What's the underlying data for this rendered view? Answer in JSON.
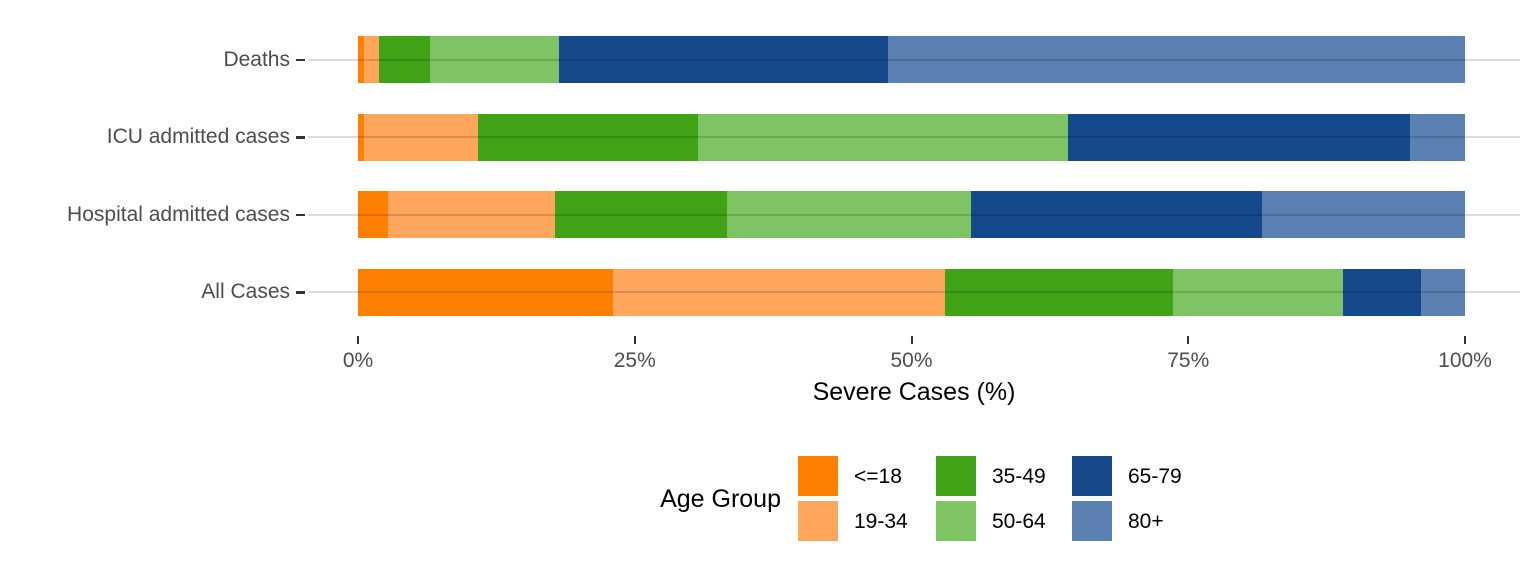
{
  "chart_data": {
    "type": "bar",
    "orientation": "horizontal",
    "stacked": true,
    "unit": "percent",
    "title": "",
    "xlabel": "Severe Cases (%)",
    "ylabel": "",
    "xlim": [
      0,
      100
    ],
    "x_ticks": [
      "0%",
      "25%",
      "50%",
      "75%",
      "100%"
    ],
    "x_tick_values": [
      0,
      25,
      50,
      75,
      100
    ],
    "grid": "horizontal lines per category",
    "categories": [
      "Deaths",
      "ICU admitted cases",
      "Hospital admitted cases",
      "All Cases"
    ],
    "legend": {
      "title": "Age Group",
      "position": "bottom",
      "columns": 3,
      "rows": 2
    },
    "series": [
      {
        "name": "<=18",
        "color": "#FF8000",
        "values": [
          0.5,
          0.5,
          2.7,
          23.0
        ]
      },
      {
        "name": "19-34",
        "color": "#FDA65C",
        "values": [
          1.4,
          10.3,
          15.1,
          30.0
        ]
      },
      {
        "name": "35-49",
        "color": "#3FA315",
        "values": [
          4.6,
          19.9,
          15.5,
          20.6
        ]
      },
      {
        "name": "50-64",
        "color": "#7EC465",
        "values": [
          11.7,
          33.4,
          22.1,
          15.4
        ]
      },
      {
        "name": "65-79",
        "color": "#16498C",
        "values": [
          29.7,
          30.9,
          26.3,
          7.0
        ]
      },
      {
        "name": "80+",
        "color": "#5B80B2",
        "values": [
          52.1,
          5.0,
          18.3,
          4.0
        ]
      }
    ]
  },
  "colors": {
    "axis_text": "#4D4D4D",
    "title_text": "#000000",
    "tick_mark": "#333333",
    "gridline": "#D9D9D9",
    "background": "#FFFFFF"
  }
}
